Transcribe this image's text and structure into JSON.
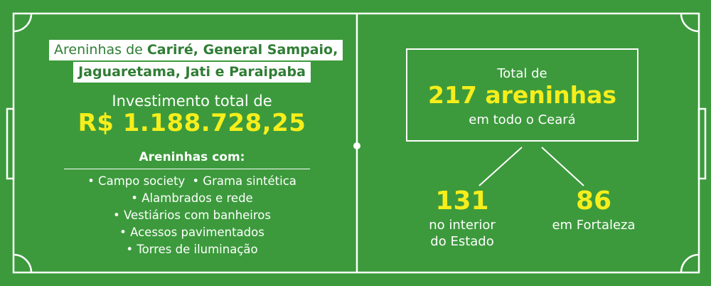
{
  "colors": {
    "grass": "#3c9a3c",
    "line": "#ffffff",
    "highlight": "#f6ee1b",
    "banner_text": "#2f7d34"
  },
  "banner": {
    "line1_prefix": "Areninhas de ",
    "line1_bold": "Cariré, General Sampaio,",
    "line2_bold": "Jaguaretama, Jati e Paraipaba"
  },
  "investment": {
    "label": "Investimento total de",
    "value": "R$ 1.188.728,25"
  },
  "features": {
    "title": "Areninhas com:",
    "row1": [
      "• Campo society",
      "• Grama sintética"
    ],
    "items": [
      "• Alambrados e rede",
      "• Vestiários com banheiros",
      "• Acessos pavimentados",
      "• Torres de iluminação"
    ]
  },
  "total": {
    "pre": "Total de",
    "value": "217 areninhas",
    "post": "em todo o Ceará"
  },
  "breakdown": {
    "interior": {
      "value": "131",
      "label1": "no interior",
      "label2": "do Estado"
    },
    "fortaleza": {
      "value": "86",
      "label1": "em Fortaleza"
    }
  }
}
